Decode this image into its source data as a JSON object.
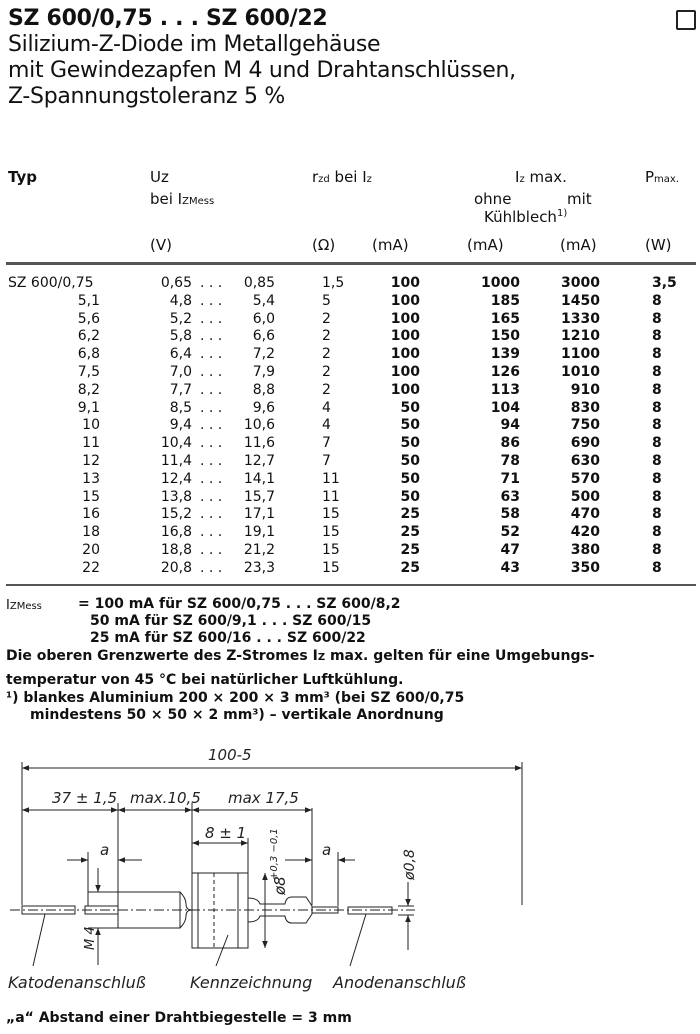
{
  "header": {
    "title": "SZ 600/0,75 . . . SZ 600/22",
    "subtitle_lines": [
      "Silizium-Z-Diode im Metallgehäuse",
      "mit Gewindezapfen M 4 und Drahtanschlüssen,",
      "Z-Spannungstoleranz 5 %"
    ]
  },
  "table": {
    "headers": {
      "typ": "Typ",
      "uz": "Uz",
      "uz_sub": "bei I",
      "uz_sub_index": "ZMess",
      "rzd": "r",
      "rzd_index": "zd",
      "rzd_rest": " bei I",
      "rzd_rest_index": "z",
      "iz": "I",
      "iz_index": "z",
      "iz_rest": " max.",
      "ohne": "ohne",
      "mit": "mit",
      "kuehlblech": "Kühlblech",
      "kuehlblech_note": "1)",
      "pmax": "P",
      "pmax_index": "max."
    },
    "units": [
      "(V)",
      "(Ω)",
      "(mA)",
      "(mA)",
      "(mA)",
      "(W)"
    ],
    "rows": [
      {
        "typ": "SZ 600/0,75",
        "uz_min": "0,65",
        "uz_max": "0,85",
        "rzd": "1,5",
        "iz": "100",
        "ohne": "1000",
        "mit": "3000",
        "p": "3,5"
      },
      {
        "typ": "5,1",
        "uz_min": "4,8",
        "uz_max": "5,4",
        "rzd": "5",
        "iz": "100",
        "ohne": "185",
        "mit": "1450",
        "p": "8"
      },
      {
        "typ": "5,6",
        "uz_min": "5,2",
        "uz_max": "6,0",
        "rzd": "2",
        "iz": "100",
        "ohne": "165",
        "mit": "1330",
        "p": "8"
      },
      {
        "typ": "6,2",
        "uz_min": "5,8",
        "uz_max": "6,6",
        "rzd": "2",
        "iz": "100",
        "ohne": "150",
        "mit": "1210",
        "p": "8"
      },
      {
        "typ": "6,8",
        "uz_min": "6,4",
        "uz_max": "7,2",
        "rzd": "2",
        "iz": "100",
        "ohne": "139",
        "mit": "1100",
        "p": "8"
      },
      {
        "typ": "7,5",
        "uz_min": "7,0",
        "uz_max": "7,9",
        "rzd": "2",
        "iz": "100",
        "ohne": "126",
        "mit": "1010",
        "p": "8"
      },
      {
        "typ": "8,2",
        "uz_min": "7,7",
        "uz_max": "8,8",
        "rzd": "2",
        "iz": "100",
        "ohne": "113",
        "mit": "910",
        "p": "8"
      },
      {
        "typ": "9,1",
        "uz_min": "8,5",
        "uz_max": "9,6",
        "rzd": "4",
        "iz": "50",
        "ohne": "104",
        "mit": "830",
        "p": "8"
      },
      {
        "typ": "10",
        "uz_min": "9,4",
        "uz_max": "10,6",
        "rzd": "4",
        "iz": "50",
        "ohne": "94",
        "mit": "750",
        "p": "8"
      },
      {
        "typ": "11",
        "uz_min": "10,4",
        "uz_max": "11,6",
        "rzd": "7",
        "iz": "50",
        "ohne": "86",
        "mit": "690",
        "p": "8"
      },
      {
        "typ": "12",
        "uz_min": "11,4",
        "uz_max": "12,7",
        "rzd": "7",
        "iz": "50",
        "ohne": "78",
        "mit": "630",
        "p": "8"
      },
      {
        "typ": "13",
        "uz_min": "12,4",
        "uz_max": "14,1",
        "rzd": "11",
        "iz": "50",
        "ohne": "71",
        "mit": "570",
        "p": "8"
      },
      {
        "typ": "15",
        "uz_min": "13,8",
        "uz_max": "15,7",
        "rzd": "11",
        "iz": "50",
        "ohne": "63",
        "mit": "500",
        "p": "8"
      },
      {
        "typ": "16",
        "uz_min": "15,2",
        "uz_max": "17,1",
        "rzd": "15",
        "iz": "25",
        "ohne": "58",
        "mit": "470",
        "p": "8"
      },
      {
        "typ": "18",
        "uz_min": "16,8",
        "uz_max": "19,1",
        "rzd": "15",
        "iz": "25",
        "ohne": "52",
        "mit": "420",
        "p": "8"
      },
      {
        "typ": "20",
        "uz_min": "18,8",
        "uz_max": "21,2",
        "rzd": "15",
        "iz": "25",
        "ohne": "47",
        "mit": "380",
        "p": "8"
      },
      {
        "typ": "22",
        "uz_min": "20,8",
        "uz_max": "23,3",
        "rzd": "15",
        "iz": "25",
        "ohne": "43",
        "mit": "350",
        "p": "8"
      }
    ],
    "range_separator": ". . ."
  },
  "notes": {
    "izmess_label": "I",
    "izmess_index": "ZMess",
    "izmess_lines": [
      "= 100 mA für SZ 600/0,75 . . . SZ 600/8,2",
      "50 mA für SZ 600/9,1   . . . SZ 600/15",
      "25 mA für SZ 600/16    . . . SZ 600/22"
    ],
    "limit_text_1": "Die oberen Grenzwerte des Z-Stromes I",
    "limit_text_1_index": "Z",
    "limit_text_1_rest": " max. gelten für eine Umgebungs-",
    "limit_text_2": "temperatur von 45 °C bei natürlicher Luftkühlung.",
    "footnote_1": "¹)  blankes Aluminium 200 × 200 × 3 mm³ (bei SZ 600/0,75",
    "footnote_2": "mindestens 50 × 50 × 2 mm³) – vertikale Anordnung"
  },
  "drawing": {
    "total_length": "100-5",
    "dim_cathode": "37 ± 1,5",
    "dim_thread": "max.10,5",
    "dim_body": "max 17,5",
    "dim_hex": "8 ± 1",
    "dim_a": "a",
    "dim_dia": "ø8",
    "dim_dia_tol": "+0,3 −0,1",
    "dim_wire": "ø0,8",
    "thread": "M 4",
    "label_cathode": "Katodenanschluß",
    "label_marking": "Kennzeichnung",
    "label_anode": "Anodenanschluß"
  },
  "footer": "„a“ Abstand einer Drahtbiegestelle = 3 mm"
}
